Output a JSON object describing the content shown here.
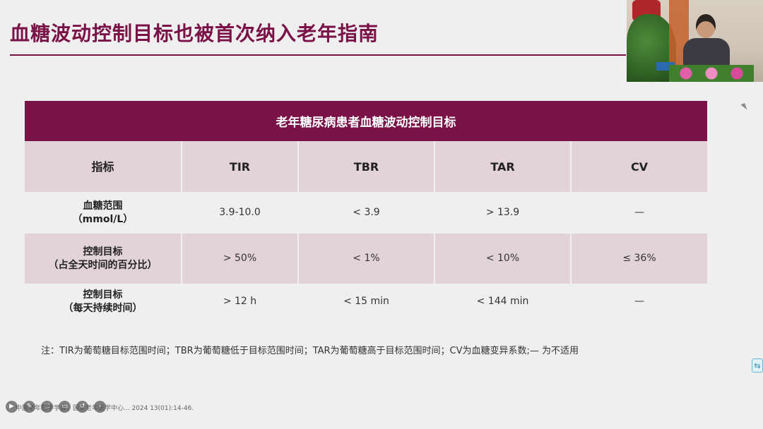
{
  "slide": {
    "title": "血糖波动控制目标也被首次纳入老年指南"
  },
  "table": {
    "caption": "老年糖尿病患者血糖波动控制目标",
    "headers": [
      "指标",
      "TIR",
      "TBR",
      "TAR",
      "CV"
    ],
    "rows": [
      {
        "label_line1": "血糖范围",
        "label_line2": "（mmol/L）",
        "values": [
          "3.9-10.0",
          "< 3.9",
          "> 13.9",
          "—"
        ]
      },
      {
        "label_line1": "控制目标",
        "label_line2": "（占全天时间的百分比）",
        "values": [
          "> 50%",
          "< 1%",
          "< 10%",
          "≤ 36%"
        ]
      },
      {
        "label_line1": "控制目标",
        "label_line2": "（每天持续时间）",
        "values": [
          "> 12 h",
          "< 15 min",
          "< 144 min",
          "—"
        ]
      }
    ]
  },
  "note": "注：TIR为葡萄糖目标范围时间；TBR为葡萄糖低于目标范围时间；TAR为葡萄糖高于目标范围时间；CV为血糖变异系数;— 为不适用",
  "reference": "中国老年医学学会，国家老年医学中心... 2024 13(01):14-46.",
  "player": {
    "buttons": [
      "play-icon",
      "pen-icon",
      "screenshot-icon",
      "comment-icon",
      "rewind-icon",
      "forward-icon"
    ]
  },
  "colors": {
    "accent": "#7a1247",
    "row_tint": "#e2d3d9",
    "background": "#efefef"
  }
}
